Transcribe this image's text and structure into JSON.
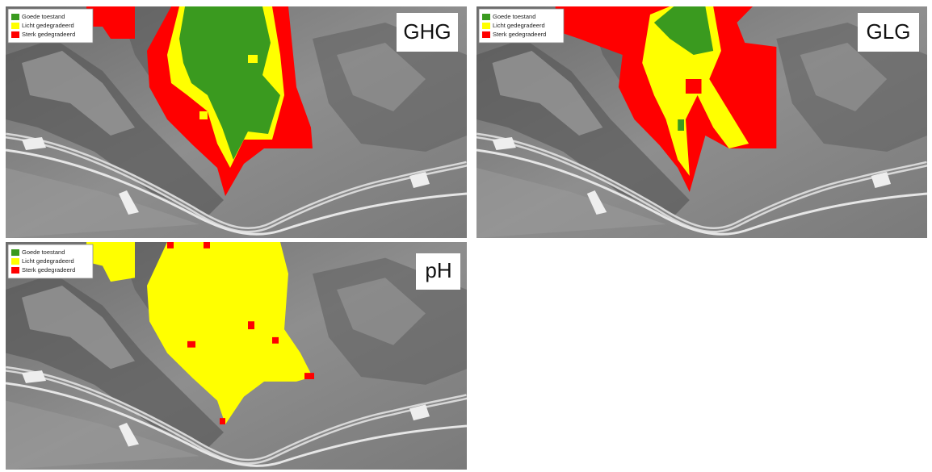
{
  "panels": [
    {
      "label": "GHG",
      "legend": [
        "Goede toestand",
        "Licht gedegradeerd",
        "Sterk gedegradeerd"
      ]
    },
    {
      "label": "GLG",
      "legend": [
        "Goede toestand",
        "Licht gedegradeerd",
        "Sterk gedegradeerd"
      ]
    },
    {
      "label": "pH",
      "legend": [
        "Goede toestand",
        "Licht gedegradeerd",
        "Sterk gedegradeerd"
      ]
    }
  ]
}
